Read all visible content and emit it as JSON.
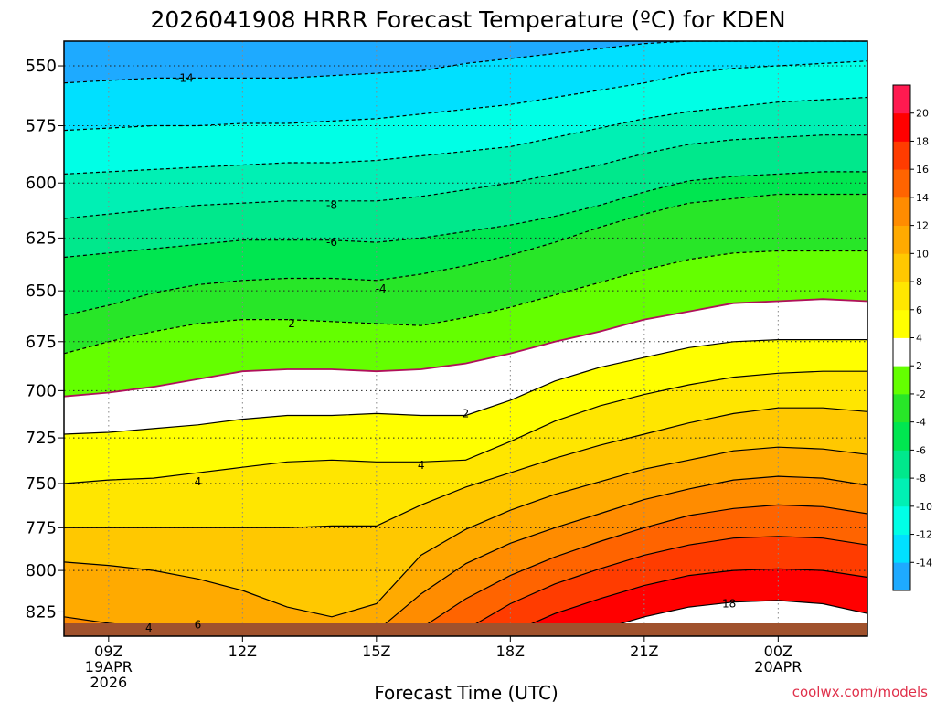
{
  "chart_data": {
    "type": "heatmap",
    "subtype": "time-height filled contour",
    "title": "2026041908 HRRR Forecast Temperature (ºC) for KDEN",
    "xlabel": "Forecast Time (UTC)",
    "ylabel": "",
    "credit": "coolwx.com/models",
    "accent_color": "#e0304a",
    "grid": true,
    "legend": "right colorbar",
    "x_ticks": [
      {
        "hour": 9,
        "lines": [
          "09Z",
          "19APR",
          "2026"
        ]
      },
      {
        "hour": 12,
        "lines": [
          "12Z"
        ]
      },
      {
        "hour": 15,
        "lines": [
          "15Z"
        ]
      },
      {
        "hour": 18,
        "lines": [
          "18Z"
        ]
      },
      {
        "hour": 21,
        "lines": [
          "21Z"
        ]
      },
      {
        "hour": 24,
        "lines": [
          "00Z",
          "20APR"
        ]
      }
    ],
    "y_ticks": [
      550,
      575,
      600,
      625,
      650,
      675,
      700,
      725,
      750,
      775,
      800,
      825
    ],
    "xlim": [
      8.0,
      26.0
    ],
    "ylim_hpa": [
      840,
      540
    ],
    "y_scale": "pressure (reversed)",
    "colorbar": {
      "levels": [
        -16,
        -14,
        -12,
        -10,
        -8,
        -6,
        -4,
        -2,
        2,
        4,
        6,
        8,
        10,
        12,
        14,
        16,
        18,
        20
      ],
      "labels": [
        "-14",
        "-12",
        "-10",
        "-8",
        "-6",
        "-4",
        "-2",
        "2",
        "4",
        "6",
        "8",
        "10",
        "12",
        "14",
        "16",
        "18",
        "20"
      ],
      "colors": [
        "#1eaaff",
        "#00e0ff",
        "#00ffe6",
        "#00f0b4",
        "#00e88c",
        "#00e650",
        "#28e628",
        "#64ff00",
        "#ffffff",
        "#ffff00",
        "#ffe600",
        "#ffc800",
        "#ffaa00",
        "#ff8c00",
        "#ff6400",
        "#ff3c00",
        "#ff0000",
        "#ff1a50"
      ]
    },
    "hours": [
      8.0,
      9.0,
      10.0,
      11.0,
      12.0,
      13.0,
      14.0,
      15.0,
      16.0,
      17.0,
      18.0,
      19.0,
      20.0,
      21.0,
      22.0,
      23.0,
      24.0,
      25.0,
      26.0
    ],
    "isotherms": [
      {
        "value": -16,
        "p": [
          539,
          539,
          539,
          539,
          539,
          539,
          539,
          539,
          539,
          539,
          539,
          539,
          539,
          539,
          539,
          539,
          539,
          539,
          539
        ]
      },
      {
        "value": -14,
        "p": [
          557,
          556,
          555,
          555,
          555,
          555,
          554,
          553,
          552,
          549,
          547,
          545,
          543,
          541,
          540,
          540,
          540,
          540,
          540
        ]
      },
      {
        "value": -12,
        "p": [
          577,
          576,
          575,
          575,
          574,
          574,
          573,
          572,
          570,
          568,
          566,
          563,
          560,
          557,
          553,
          551,
          550,
          549,
          548
        ]
      },
      {
        "value": -10,
        "p": [
          596,
          595,
          594,
          593,
          592,
          591,
          591,
          590,
          588,
          586,
          584,
          580,
          576,
          572,
          569,
          567,
          565,
          564,
          563
        ]
      },
      {
        "value": -8,
        "p": [
          616,
          614,
          612,
          610,
          609,
          608,
          608,
          608,
          606,
          603,
          600,
          596,
          592,
          587,
          583,
          581,
          580,
          579,
          579
        ]
      },
      {
        "value": -6,
        "p": [
          634,
          632,
          630,
          628,
          626,
          626,
          626,
          627,
          625,
          622,
          619,
          615,
          610,
          604,
          599,
          597,
          596,
          595,
          595
        ]
      },
      {
        "value": -4,
        "p": [
          662,
          657,
          651,
          647,
          645,
          644,
          644,
          645,
          642,
          638,
          633,
          627,
          620,
          614,
          609,
          607,
          605,
          605,
          605
        ]
      },
      {
        "value": -2,
        "p": [
          681,
          675,
          670,
          666,
          664,
          664,
          665,
          666,
          667,
          663,
          658,
          652,
          646,
          640,
          635,
          632,
          631,
          631,
          631
        ]
      },
      {
        "value": 2,
        "p": [
          703,
          701,
          698,
          694,
          690,
          689,
          689,
          690,
          689,
          686,
          681,
          675,
          670,
          664,
          660,
          656,
          655,
          654,
          655
        ]
      },
      {
        "value": 4,
        "p": [
          723,
          722,
          720,
          718,
          715,
          713,
          713,
          712,
          713,
          713,
          705,
          695,
          688,
          683,
          678,
          675,
          674,
          674,
          674
        ]
      },
      {
        "value": 6,
        "p": [
          750,
          748,
          747,
          744,
          741,
          738,
          737,
          738,
          738,
          737,
          727,
          716,
          708,
          702,
          697,
          693,
          691,
          690,
          690
        ]
      },
      {
        "value": 8,
        "p": [
          775,
          775,
          775,
          775,
          775,
          775,
          774,
          774,
          762,
          752,
          744,
          736,
          729,
          723,
          717,
          712,
          709,
          709,
          711
        ]
      },
      {
        "value": 10,
        "p": [
          795,
          797,
          800,
          805,
          812,
          822,
          828,
          820,
          791,
          776,
          765,
          756,
          749,
          742,
          737,
          732,
          730,
          731,
          734
        ]
      },
      {
        "value": 12,
        "p": [
          828,
          832,
          835,
          836,
          838,
          839,
          839,
          837,
          814,
          796,
          784,
          775,
          767,
          759,
          753,
          748,
          746,
          747,
          751
        ]
      },
      {
        "value": 14,
        "p": [
          843,
          843,
          843,
          843,
          843,
          843,
          843,
          843,
          835,
          817,
          803,
          792,
          783,
          775,
          768,
          764,
          762,
          763,
          767
        ]
      },
      {
        "value": 16,
        "p": [
          843,
          843,
          843,
          843,
          843,
          843,
          843,
          843,
          843,
          836,
          820,
          808,
          799,
          791,
          785,
          781,
          780,
          781,
          785
        ]
      },
      {
        "value": 18,
        "p": [
          843,
          843,
          843,
          843,
          843,
          843,
          843,
          843,
          843,
          843,
          838,
          826,
          817,
          809,
          803,
          800,
          799,
          800,
          804
        ]
      },
      {
        "value": 20,
        "p": [
          843,
          843,
          843,
          843,
          843,
          843,
          843,
          843,
          843,
          843,
          843,
          843,
          836,
          828,
          822,
          819,
          818,
          820,
          826
        ]
      }
    ],
    "contour_labels": [
      {
        "text": "-14",
        "hour": 10.7,
        "hpa": 555
      },
      {
        "text": "-8",
        "hour": 14.0,
        "hpa": 610
      },
      {
        "text": "-6",
        "hour": 14.0,
        "hpa": 627
      },
      {
        "text": "-4",
        "hour": 15.1,
        "hpa": 649
      },
      {
        "text": "2",
        "hour": 13.1,
        "hpa": 666
      },
      {
        "text": "2",
        "hour": 17.0,
        "hpa": 712
      },
      {
        "text": "4",
        "hour": 16.0,
        "hpa": 740
      },
      {
        "text": "4",
        "hour": 11.0,
        "hpa": 749
      },
      {
        "text": "18",
        "hour": 22.9,
        "hpa": 820
      },
      {
        "text": "4",
        "hour": 9.9,
        "hpa": 835
      },
      {
        "text": "6",
        "hour": 11.0,
        "hpa": 833
      }
    ]
  }
}
